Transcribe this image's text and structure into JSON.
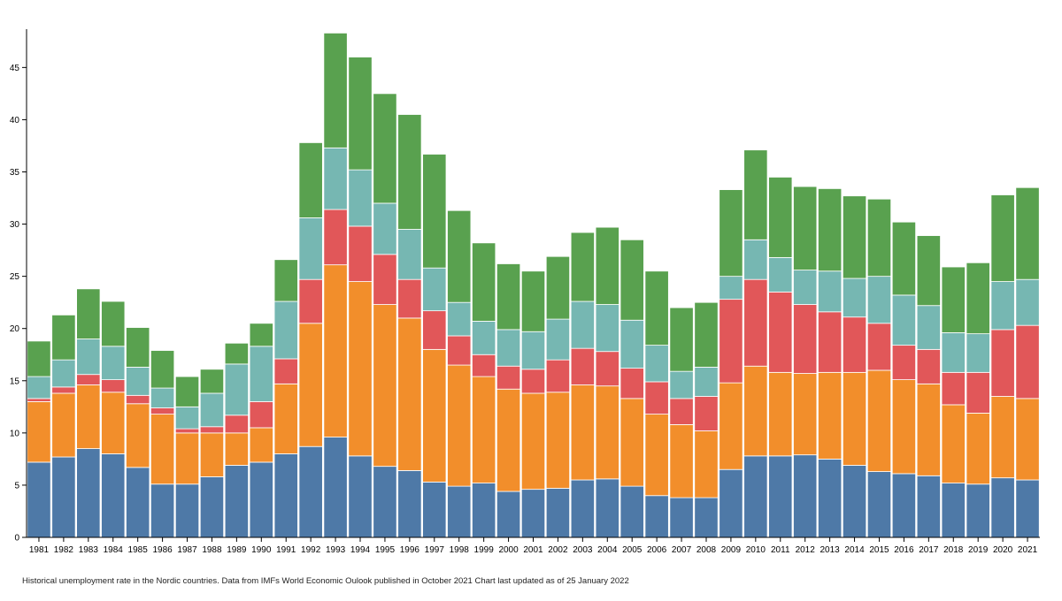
{
  "chart_data": {
    "type": "bar",
    "stacked": true,
    "categories": [
      "1981",
      "1982",
      "1983",
      "1984",
      "1985",
      "1986",
      "1987",
      "1988",
      "1989",
      "1990",
      "1991",
      "1992",
      "1993",
      "1994",
      "1995",
      "1996",
      "1997",
      "1998",
      "1999",
      "2000",
      "2001",
      "2002",
      "2003",
      "2004",
      "2005",
      "2006",
      "2007",
      "2008",
      "2009",
      "2010",
      "2011",
      "2012",
      "2013",
      "2014",
      "2015",
      "2016",
      "2017",
      "2018",
      "2019",
      "2020",
      "2021"
    ],
    "series": [
      {
        "color": "#4e79a7",
        "values": [
          7.2,
          7.7,
          8.5,
          8.0,
          6.7,
          5.1,
          5.1,
          5.8,
          6.9,
          7.2,
          8.0,
          8.7,
          9.6,
          7.8,
          6.8,
          6.4,
          5.3,
          4.9,
          5.2,
          4.4,
          4.6,
          4.7,
          5.5,
          5.6,
          4.9,
          4.0,
          3.8,
          3.8,
          6.5,
          7.8,
          7.8,
          7.9,
          7.5,
          6.9,
          6.3,
          6.1,
          5.9,
          5.2,
          5.1,
          5.7,
          5.5
        ]
      },
      {
        "color": "#f28e2b",
        "values": [
          5.8,
          6.1,
          6.1,
          5.9,
          6.1,
          6.7,
          4.9,
          4.2,
          3.1,
          3.3,
          6.7,
          11.8,
          16.5,
          16.7,
          15.5,
          14.6,
          12.7,
          11.6,
          10.2,
          9.8,
          9.2,
          9.2,
          9.1,
          8.9,
          8.4,
          7.8,
          7.0,
          6.4,
          8.3,
          8.6,
          8.0,
          7.8,
          8.3,
          8.9,
          9.7,
          9.0,
          8.8,
          7.5,
          6.8,
          7.8,
          7.8
        ]
      },
      {
        "color": "#e15759",
        "values": [
          0.3,
          0.6,
          1.0,
          1.2,
          0.8,
          0.6,
          0.4,
          0.6,
          1.7,
          2.5,
          2.4,
          4.2,
          5.3,
          5.3,
          4.8,
          3.7,
          3.7,
          2.8,
          2.1,
          2.2,
          2.3,
          3.1,
          3.5,
          3.3,
          2.9,
          3.1,
          2.5,
          3.3,
          8.0,
          8.3,
          7.7,
          6.6,
          5.8,
          5.3,
          4.5,
          3.3,
          3.3,
          3.1,
          3.9,
          6.4,
          7.0
        ]
      },
      {
        "color": "#76b7b2",
        "values": [
          2.1,
          2.6,
          3.4,
          3.2,
          2.7,
          1.9,
          2.1,
          3.2,
          4.9,
          5.3,
          5.5,
          5.9,
          5.9,
          5.4,
          4.9,
          4.8,
          4.1,
          3.2,
          3.2,
          3.5,
          3.6,
          3.9,
          4.5,
          4.5,
          4.6,
          3.5,
          2.6,
          2.8,
          2.2,
          3.8,
          3.3,
          3.3,
          3.9,
          3.7,
          4.5,
          4.8,
          4.2,
          3.8,
          3.7,
          4.6,
          4.4
        ]
      },
      {
        "color": "#59a14f",
        "values": [
          3.4,
          4.3,
          4.8,
          4.3,
          3.8,
          3.6,
          2.9,
          2.3,
          2.0,
          2.2,
          4.0,
          7.2,
          11.0,
          10.8,
          10.5,
          11.0,
          10.9,
          8.8,
          7.5,
          6.3,
          5.8,
          6.0,
          6.6,
          7.4,
          7.7,
          7.1,
          6.1,
          6.2,
          8.3,
          8.6,
          7.7,
          8.0,
          7.9,
          7.9,
          7.4,
          7.0,
          6.7,
          6.3,
          6.8,
          8.3,
          8.8
        ]
      }
    ],
    "yticks": [
      0,
      5,
      10,
      15,
      20,
      25,
      30,
      35,
      40,
      45
    ],
    "ylim": [
      0,
      48.5
    ],
    "grid": false
  },
  "caption": "Historical unemployment rate in the Nordic countries. Data from IMFs World Economic Oulook published in October 2021 Chart last updated as of 25 January 2022"
}
